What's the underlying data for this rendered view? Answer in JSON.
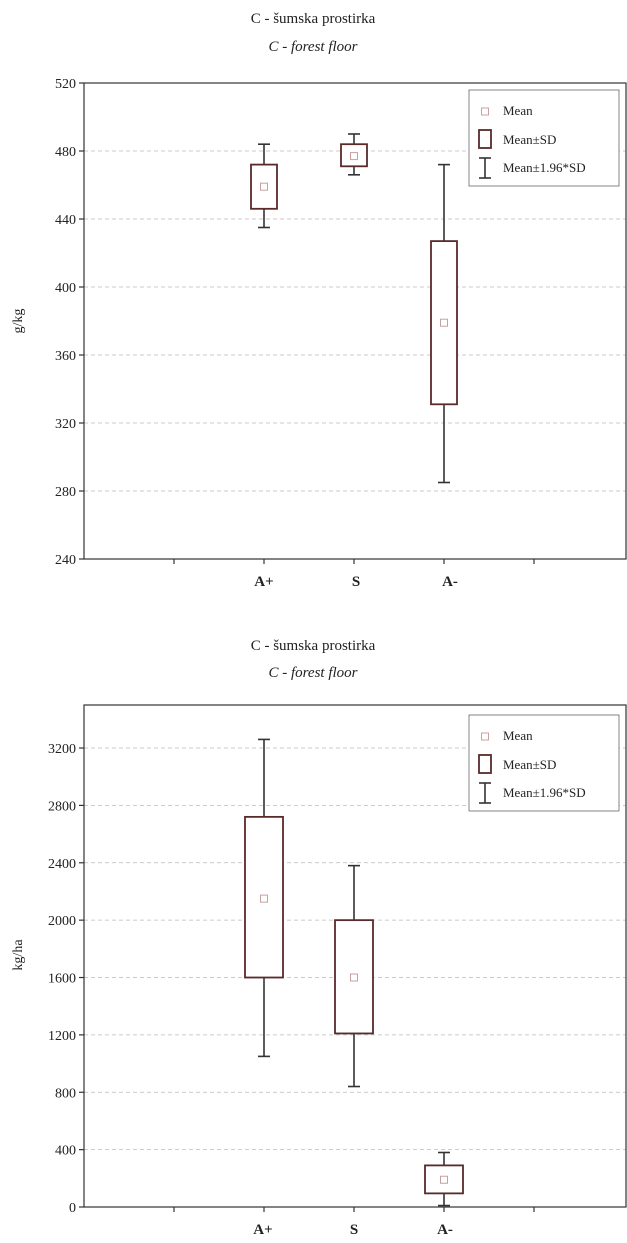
{
  "charts": [
    {
      "title": "C - šumska prostirka",
      "subtitle": "C - forest floor",
      "ylabel": "g/kg",
      "yticks": [
        "240",
        "280",
        "320",
        "360",
        "400",
        "440",
        "480",
        "520"
      ],
      "legend": {
        "mean": "Mean",
        "sd": "Mean±SD",
        "ci": "Mean±1.96*SD"
      }
    },
    {
      "title": "C - šumska prostirka",
      "subtitle": "C - forest floor",
      "ylabel": "kg/ha",
      "yticks": [
        "0",
        "400",
        "800",
        "1200",
        "1600",
        "2000",
        "2400",
        "2800",
        "3200"
      ],
      "legend": {
        "mean": "Mean",
        "sd": "Mean±SD",
        "ci": "Mean±1.96*SD"
      }
    }
  ],
  "chart_data": [
    {
      "type": "box",
      "title": "C - šumska prostirka",
      "subtitle": "C - forest floor",
      "xlabel": "",
      "ylabel": "g/kg",
      "ylim": [
        240,
        520
      ],
      "yticks": [
        240,
        280,
        320,
        360,
        400,
        440,
        480,
        520
      ],
      "grid": true,
      "legend_position": "top-right",
      "categories": [
        "A+",
        "S",
        "A-"
      ],
      "mean": [
        459,
        477,
        379
      ],
      "sd_low": [
        446,
        471,
        331
      ],
      "sd_high": [
        472,
        484,
        427
      ],
      "ci_low": [
        435,
        466,
        285
      ],
      "ci_high": [
        484,
        490,
        472
      ]
    },
    {
      "type": "box",
      "title": "C - šumska prostirka",
      "subtitle": "C - forest floor",
      "xlabel": "",
      "ylabel": "kg/ha",
      "ylim": [
        0,
        3500
      ],
      "yticks": [
        0,
        400,
        800,
        1200,
        1600,
        2000,
        2400,
        2800,
        3200
      ],
      "grid": true,
      "legend_position": "top-right",
      "categories": [
        "A+",
        "S",
        "A-"
      ],
      "mean": [
        2150,
        1600,
        190
      ],
      "sd_low": [
        1600,
        1210,
        95
      ],
      "sd_high": [
        2720,
        2000,
        290
      ],
      "ci_low": [
        1050,
        840,
        10
      ],
      "ci_high": [
        3260,
        2380,
        380
      ]
    }
  ],
  "colors": {
    "box": "#5a2a2a",
    "whisker": "#333333",
    "mean_marker": "#c9a0a0",
    "axis": "#333333",
    "grid": "#bbbbbb"
  }
}
